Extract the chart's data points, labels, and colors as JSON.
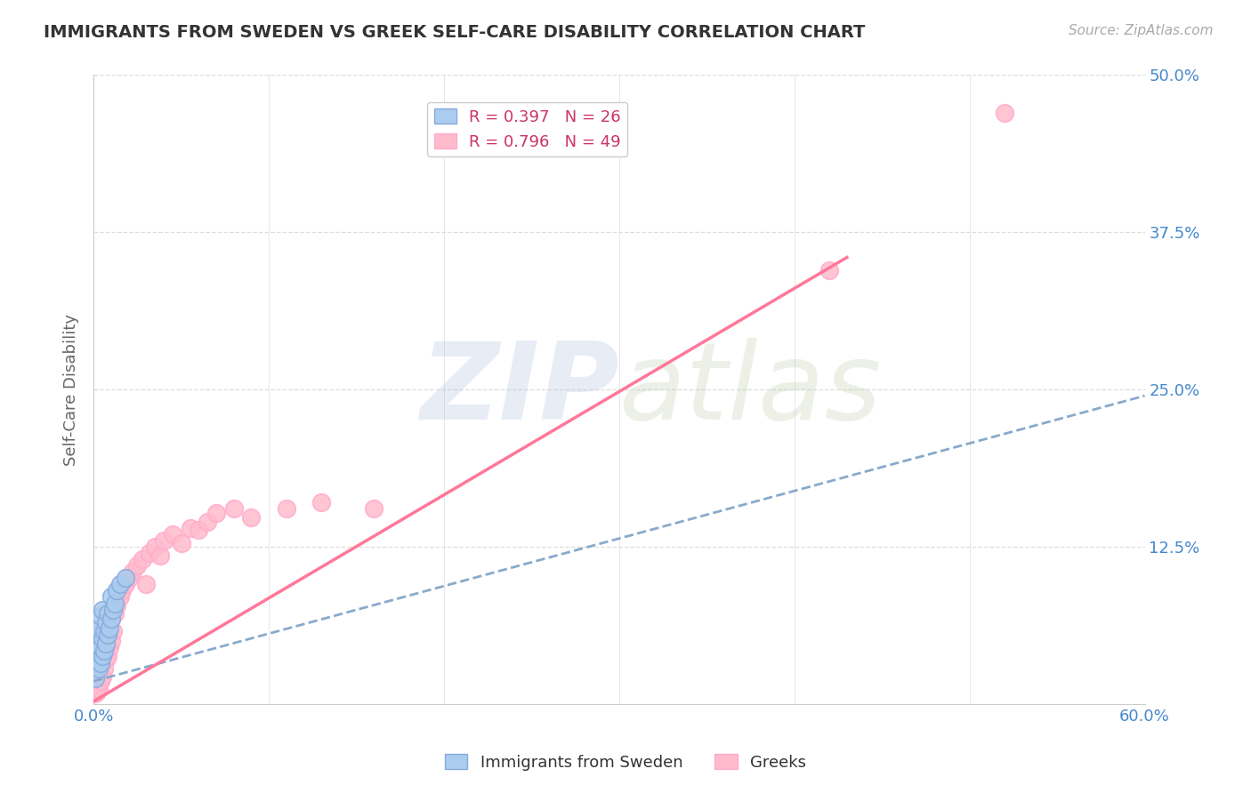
{
  "title": "IMMIGRANTS FROM SWEDEN VS GREEK SELF-CARE DISABILITY CORRELATION CHART",
  "source": "Source: ZipAtlas.com",
  "ylabel": "Self-Care Disability",
  "xlim": [
    0.0,
    0.6
  ],
  "ylim": [
    0.0,
    0.5
  ],
  "xticks": [
    0.0,
    0.1,
    0.2,
    0.3,
    0.4,
    0.5,
    0.6
  ],
  "xticklabels": [
    "0.0%",
    "",
    "",
    "",
    "",
    "",
    "60.0%"
  ],
  "yticks": [
    0.0,
    0.125,
    0.25,
    0.375,
    0.5
  ],
  "yticklabels": [
    "",
    "12.5%",
    "25.0%",
    "37.5%",
    "50.0%"
  ],
  "legend1_label": "R = 0.397   N = 26",
  "legend2_label": "R = 0.796   N = 49",
  "watermark_zip": "ZIP",
  "watermark_atlas": "atlas",
  "background_color": "#ffffff",
  "grid_color": "#dddddd",
  "title_color": "#333333",
  "axis_label_color": "#666666",
  "tick_color": "#4488cc",
  "scatter_blue_color": "#aaccee",
  "scatter_pink_color": "#ffbbcc",
  "scatter_blue_edge": "#88aadd",
  "scatter_pink_edge": "#ffaacc",
  "line_blue_color": "#88aacc",
  "line_pink_color": "#ff7799",
  "blue_line_x0": 0.0,
  "blue_line_x1": 0.6,
  "blue_line_y0": 0.018,
  "blue_line_y1": 0.245,
  "pink_line_x0": 0.0,
  "pink_line_x1": 0.43,
  "pink_line_y0": 0.002,
  "pink_line_y1": 0.355,
  "blue_scatter_x": [
    0.001,
    0.002,
    0.002,
    0.003,
    0.003,
    0.003,
    0.004,
    0.004,
    0.004,
    0.005,
    0.005,
    0.005,
    0.006,
    0.006,
    0.007,
    0.007,
    0.008,
    0.008,
    0.009,
    0.01,
    0.01,
    0.011,
    0.012,
    0.013,
    0.015,
    0.018
  ],
  "blue_scatter_y": [
    0.02,
    0.035,
    0.055,
    0.028,
    0.04,
    0.06,
    0.032,
    0.045,
    0.07,
    0.038,
    0.052,
    0.075,
    0.042,
    0.058,
    0.048,
    0.065,
    0.055,
    0.072,
    0.06,
    0.068,
    0.085,
    0.075,
    0.08,
    0.09,
    0.095,
    0.1
  ],
  "pink_scatter_x": [
    0.001,
    0.001,
    0.002,
    0.002,
    0.002,
    0.003,
    0.003,
    0.003,
    0.004,
    0.004,
    0.005,
    0.005,
    0.006,
    0.006,
    0.007,
    0.007,
    0.008,
    0.008,
    0.009,
    0.01,
    0.01,
    0.011,
    0.012,
    0.013,
    0.015,
    0.016,
    0.018,
    0.02,
    0.022,
    0.025,
    0.028,
    0.03,
    0.032,
    0.035,
    0.038,
    0.04,
    0.045,
    0.05,
    0.055,
    0.06,
    0.065,
    0.07,
    0.08,
    0.09,
    0.11,
    0.13,
    0.16,
    0.42,
    0.52
  ],
  "pink_scatter_y": [
    0.008,
    0.015,
    0.01,
    0.02,
    0.03,
    0.012,
    0.025,
    0.038,
    0.018,
    0.032,
    0.022,
    0.04,
    0.028,
    0.048,
    0.035,
    0.055,
    0.038,
    0.06,
    0.045,
    0.05,
    0.068,
    0.058,
    0.072,
    0.078,
    0.085,
    0.09,
    0.095,
    0.1,
    0.105,
    0.11,
    0.115,
    0.095,
    0.12,
    0.125,
    0.118,
    0.13,
    0.135,
    0.128,
    0.14,
    0.138,
    0.145,
    0.152,
    0.155,
    0.148,
    0.155,
    0.16,
    0.155,
    0.345,
    0.47
  ]
}
